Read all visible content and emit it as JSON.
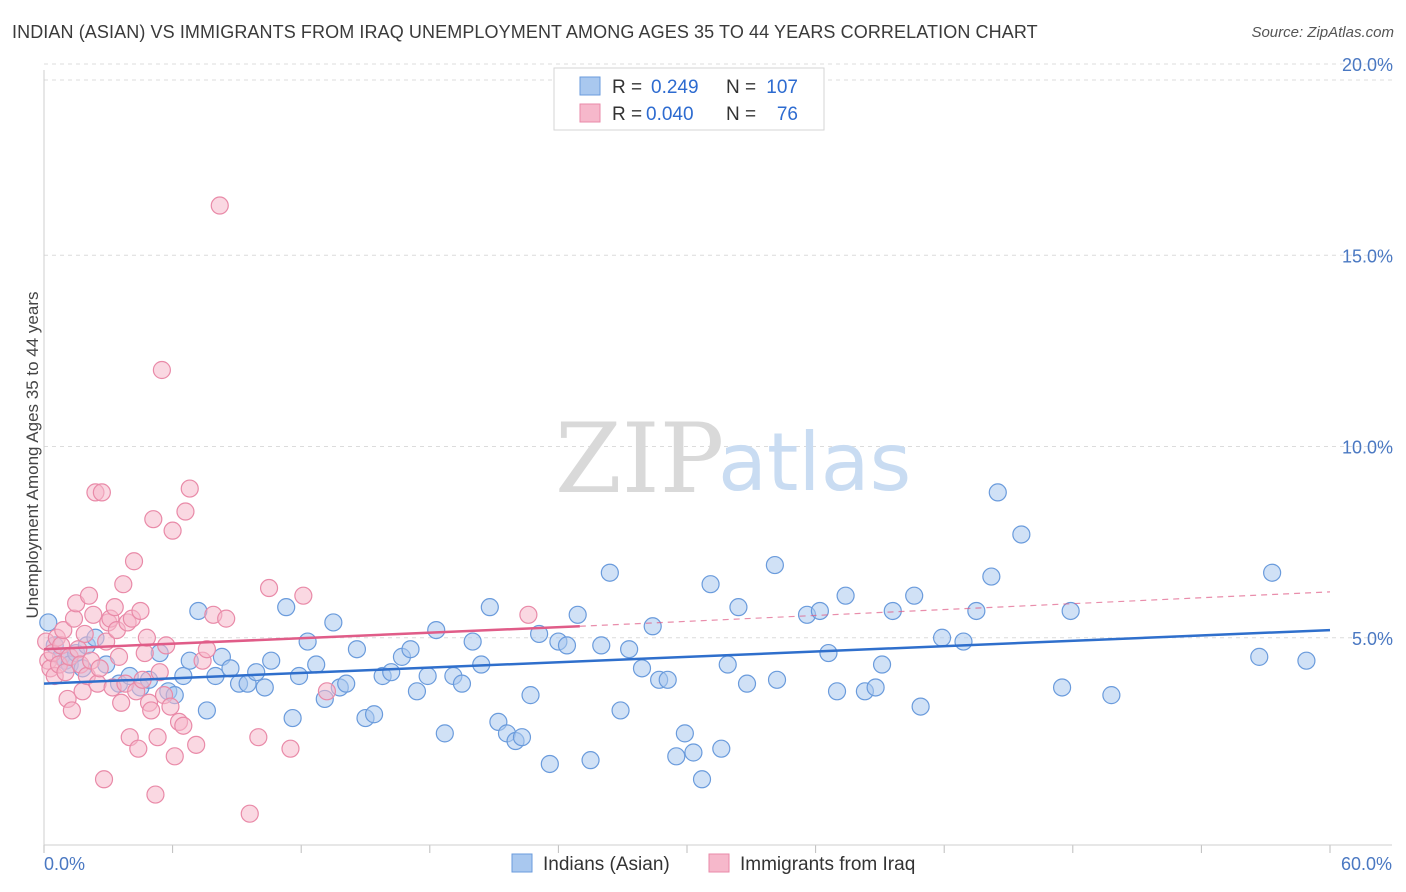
{
  "header": {
    "title": "INDIAN (ASIAN) VS IMMIGRANTS FROM IRAQ UNEMPLOYMENT AMONG AGES 35 TO 44 YEARS CORRELATION CHART",
    "source": "Source: ZipAtlas.com"
  },
  "watermark": {
    "zip": "ZIP",
    "atlas": "atlas"
  },
  "colors": {
    "blue_fill": "#a9c8ef",
    "blue_stroke": "#6a9bdc",
    "blue_line": "#2f6fcc",
    "pink_fill": "#f6b8cb",
    "pink_stroke": "#e98aa8",
    "pink_line": "#e05c88",
    "grid": "#dcdcdc",
    "tick_text": "#4a78c2"
  },
  "chart_data": {
    "type": "scatter",
    "title": "INDIAN (ASIAN) VS IMMIGRANTS FROM IRAQ UNEMPLOYMENT AMONG AGES 35 TO 44 YEARS CORRELATION CHART",
    "xlabel": "",
    "ylabel": "Unemployment Among Ages 35 to 44 years",
    "xlim": [
      0,
      60
    ],
    "ylim": [
      0,
      20
    ],
    "x_tick_labels": [
      "0.0%",
      "60.0%"
    ],
    "y_ticks": [
      5,
      10,
      15,
      20
    ],
    "y_tick_labels": [
      "5.0%",
      "10.0%",
      "15.0%",
      "20.0%"
    ],
    "grid": true,
    "legend_position": "top-center",
    "legend": [
      {
        "r_label": "R =",
        "r_value": "0.249",
        "n_label": "N =",
        "n_value": "107"
      },
      {
        "r_label": "R =",
        "r_value": "0.040",
        "n_label": "N =",
        "n_value": "76"
      }
    ],
    "series": [
      {
        "name": "Indians (Asian)",
        "color": "blue",
        "trend": {
          "x": [
            0,
            60
          ],
          "y": [
            3.8,
            5.2
          ],
          "dashed_extension": false
        },
        "points": [
          [
            0.2,
            5.4
          ],
          [
            0.5,
            4.8
          ],
          [
            0.8,
            4.5
          ],
          [
            1.0,
            4.4
          ],
          [
            1.2,
            4.3
          ],
          [
            1.5,
            4.6
          ],
          [
            1.8,
            4.2
          ],
          [
            2.0,
            4.8
          ],
          [
            2.4,
            5.0
          ],
          [
            2.9,
            4.3
          ],
          [
            3.5,
            3.8
          ],
          [
            4.0,
            4.0
          ],
          [
            4.5,
            3.7
          ],
          [
            4.9,
            3.9
          ],
          [
            5.4,
            4.6
          ],
          [
            5.8,
            3.6
          ],
          [
            6.1,
            3.5
          ],
          [
            6.5,
            4.0
          ],
          [
            6.8,
            4.4
          ],
          [
            7.2,
            5.7
          ],
          [
            7.6,
            3.1
          ],
          [
            8.0,
            4.0
          ],
          [
            8.3,
            4.5
          ],
          [
            8.7,
            4.2
          ],
          [
            9.1,
            3.8
          ],
          [
            9.5,
            3.8
          ],
          [
            9.9,
            4.1
          ],
          [
            10.3,
            3.7
          ],
          [
            10.6,
            4.4
          ],
          [
            11.3,
            5.8
          ],
          [
            11.6,
            2.9
          ],
          [
            11.9,
            4.0
          ],
          [
            12.3,
            4.9
          ],
          [
            12.7,
            4.3
          ],
          [
            13.1,
            3.4
          ],
          [
            13.5,
            5.4
          ],
          [
            13.8,
            3.7
          ],
          [
            14.1,
            3.8
          ],
          [
            14.6,
            4.7
          ],
          [
            15.0,
            2.9
          ],
          [
            15.4,
            3.0
          ],
          [
            15.8,
            4.0
          ],
          [
            16.2,
            4.1
          ],
          [
            16.7,
            4.5
          ],
          [
            17.1,
            4.7
          ],
          [
            17.4,
            3.6
          ],
          [
            17.9,
            4.0
          ],
          [
            18.3,
            5.2
          ],
          [
            18.7,
            2.5
          ],
          [
            19.1,
            4.0
          ],
          [
            19.5,
            3.8
          ],
          [
            20.0,
            4.9
          ],
          [
            20.4,
            4.3
          ],
          [
            20.8,
            5.8
          ],
          [
            21.2,
            2.8
          ],
          [
            21.6,
            2.5
          ],
          [
            22.0,
            2.3
          ],
          [
            22.3,
            2.4
          ],
          [
            22.7,
            3.5
          ],
          [
            23.1,
            5.1
          ],
          [
            23.6,
            1.7
          ],
          [
            24.0,
            4.9
          ],
          [
            24.4,
            4.8
          ],
          [
            24.9,
            5.6
          ],
          [
            25.5,
            1.8
          ],
          [
            26.0,
            4.8
          ],
          [
            26.4,
            6.7
          ],
          [
            26.9,
            3.1
          ],
          [
            27.3,
            4.7
          ],
          [
            27.9,
            4.2
          ],
          [
            28.4,
            5.3
          ],
          [
            28.7,
            3.9
          ],
          [
            29.1,
            3.9
          ],
          [
            29.5,
            1.9
          ],
          [
            29.9,
            2.5
          ],
          [
            30.3,
            2.0
          ],
          [
            30.7,
            1.3
          ],
          [
            31.1,
            6.4
          ],
          [
            31.6,
            2.1
          ],
          [
            31.9,
            4.3
          ],
          [
            32.4,
            5.8
          ],
          [
            32.8,
            3.8
          ],
          [
            34.1,
            6.9
          ],
          [
            34.2,
            3.9
          ],
          [
            35.6,
            5.6
          ],
          [
            36.2,
            5.7
          ],
          [
            36.6,
            4.6
          ],
          [
            37.0,
            3.6
          ],
          [
            37.4,
            6.1
          ],
          [
            38.3,
            3.6
          ],
          [
            38.8,
            3.7
          ],
          [
            39.1,
            4.3
          ],
          [
            39.6,
            5.7
          ],
          [
            40.6,
            6.1
          ],
          [
            40.9,
            3.2
          ],
          [
            41.9,
            5.0
          ],
          [
            42.9,
            4.9
          ],
          [
            43.5,
            5.7
          ],
          [
            44.2,
            6.6
          ],
          [
            44.5,
            8.8
          ],
          [
            45.6,
            7.7
          ],
          [
            47.5,
            3.7
          ],
          [
            47.9,
            5.7
          ],
          [
            49.8,
            3.5
          ],
          [
            56.7,
            4.5
          ],
          [
            57.3,
            6.7
          ],
          [
            58.9,
            4.4
          ]
        ]
      },
      {
        "name": "Immigrants from Iraq",
        "color": "pink",
        "trend": {
          "x": [
            0,
            25
          ],
          "y": [
            4.7,
            5.3
          ],
          "dashed_extension": true,
          "dashed_to": [
            60,
            6.2
          ]
        },
        "points": [
          [
            0.1,
            4.9
          ],
          [
            0.2,
            4.4
          ],
          [
            0.3,
            4.2
          ],
          [
            0.4,
            4.6
          ],
          [
            0.5,
            4.0
          ],
          [
            0.6,
            5.0
          ],
          [
            0.7,
            4.3
          ],
          [
            0.8,
            4.8
          ],
          [
            0.9,
            5.2
          ],
          [
            1.0,
            4.1
          ],
          [
            1.1,
            3.4
          ],
          [
            1.2,
            4.5
          ],
          [
            1.3,
            3.1
          ],
          [
            1.4,
            5.5
          ],
          [
            1.5,
            5.9
          ],
          [
            1.6,
            4.7
          ],
          [
            1.7,
            4.3
          ],
          [
            1.8,
            3.6
          ],
          [
            1.9,
            5.1
          ],
          [
            2.0,
            4.0
          ],
          [
            2.1,
            6.1
          ],
          [
            2.2,
            4.4
          ],
          [
            2.3,
            5.6
          ],
          [
            2.4,
            8.8
          ],
          [
            2.5,
            3.8
          ],
          [
            2.6,
            4.2
          ],
          [
            2.7,
            8.8
          ],
          [
            2.8,
            1.3
          ],
          [
            2.9,
            4.9
          ],
          [
            3.0,
            5.4
          ],
          [
            3.1,
            5.5
          ],
          [
            3.2,
            3.7
          ],
          [
            3.3,
            5.8
          ],
          [
            3.4,
            5.2
          ],
          [
            3.5,
            4.5
          ],
          [
            3.6,
            3.3
          ],
          [
            3.7,
            6.4
          ],
          [
            3.8,
            3.8
          ],
          [
            3.9,
            5.4
          ],
          [
            4.0,
            2.4
          ],
          [
            4.1,
            5.5
          ],
          [
            4.2,
            7.0
          ],
          [
            4.3,
            3.6
          ],
          [
            4.4,
            2.1
          ],
          [
            4.5,
            5.7
          ],
          [
            4.6,
            3.9
          ],
          [
            4.7,
            4.6
          ],
          [
            4.8,
            5.0
          ],
          [
            4.9,
            3.3
          ],
          [
            5.0,
            3.1
          ],
          [
            5.1,
            8.1
          ],
          [
            5.2,
            0.9
          ],
          [
            5.3,
            2.4
          ],
          [
            5.4,
            4.1
          ],
          [
            5.5,
            12.0
          ],
          [
            5.6,
            3.5
          ],
          [
            5.7,
            4.8
          ],
          [
            5.9,
            3.2
          ],
          [
            6.0,
            7.8
          ],
          [
            6.1,
            1.9
          ],
          [
            6.3,
            2.8
          ],
          [
            6.5,
            2.7
          ],
          [
            6.6,
            8.3
          ],
          [
            6.8,
            8.9
          ],
          [
            7.1,
            2.2
          ],
          [
            7.4,
            4.4
          ],
          [
            7.6,
            4.7
          ],
          [
            7.9,
            5.6
          ],
          [
            8.2,
            16.3
          ],
          [
            8.5,
            5.5
          ],
          [
            9.6,
            0.4
          ],
          [
            10.0,
            2.4
          ],
          [
            10.5,
            6.3
          ],
          [
            11.5,
            2.1
          ],
          [
            12.1,
            6.1
          ],
          [
            13.2,
            3.6
          ],
          [
            22.6,
            5.6
          ]
        ]
      }
    ]
  },
  "bottom_legend": [
    {
      "label": "Indians (Asian)"
    },
    {
      "label": "Immigrants from Iraq"
    }
  ]
}
